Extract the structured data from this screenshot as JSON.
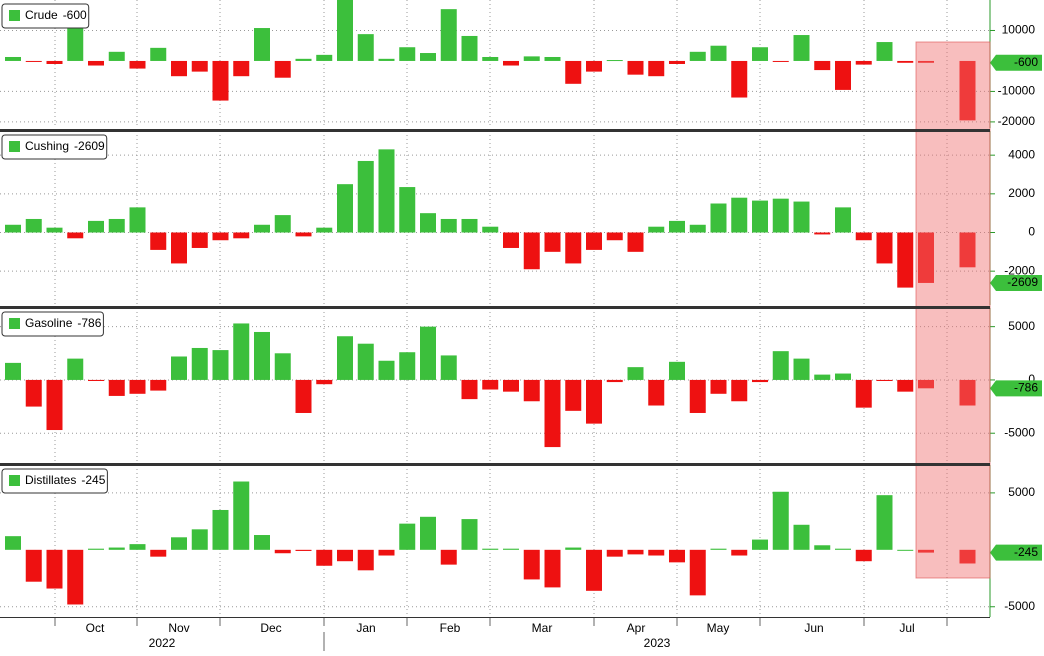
{
  "chart_data": [
    {
      "type": "bar",
      "series": [
        {
          "name": "Crude",
          "values": [
            1300,
            -200,
            -1000,
            10800,
            -1500,
            3000,
            -2500,
            4300,
            -5000,
            -3500,
            -13000,
            -5000,
            10800,
            -5500,
            700,
            2000,
            20000,
            8800,
            700,
            4500,
            2600,
            17000,
            8200,
            1300,
            -1500,
            1500,
            1300,
            -7500,
            -3500,
            300,
            -4500,
            -5000,
            -1000,
            3000,
            5000,
            -12000,
            4500,
            -200,
            8500,
            -3000,
            -9500,
            -1200,
            6200,
            -600,
            -600,
            null,
            -19500
          ]
        }
      ],
      "ylim": [
        -22000,
        20000
      ],
      "yticks": [
        -20000,
        -10000,
        10000
      ],
      "colors": {
        "positive": "#3cbf3c",
        "negative": "#ee1111"
      },
      "grid": true
    },
    {
      "type": "bar",
      "series": [
        {
          "name": "Cushing",
          "values": [
            400,
            700,
            250,
            -300,
            600,
            700,
            1300,
            -900,
            -1600,
            -800,
            -400,
            -300,
            400,
            900,
            -200,
            250,
            2500,
            3700,
            4300,
            2350,
            1000,
            700,
            700,
            300,
            -800,
            -1900,
            -1000,
            -1600,
            -900,
            -400,
            -1000,
            300,
            600,
            400,
            1500,
            1800,
            1650,
            1750,
            1600,
            -100,
            1300,
            -400,
            -1600,
            -2850,
            -2609,
            null,
            -1800
          ]
        }
      ],
      "ylim": [
        -3750,
        5250
      ],
      "yticks": [
        -2000,
        0,
        2000,
        4000
      ],
      "colors": {
        "positive": "#3cbf3c",
        "negative": "#ee1111"
      },
      "grid": true
    },
    {
      "type": "bar",
      "series": [
        {
          "name": "Gasoline",
          "values": [
            1600,
            -2500,
            -4700,
            2000,
            -100,
            -1500,
            -1300,
            -1000,
            2200,
            3000,
            2800,
            5300,
            4500,
            2500,
            -3100,
            -400,
            4100,
            3400,
            1800,
            2600,
            5000,
            2300,
            -1800,
            -900,
            -1100,
            -2000,
            -6300,
            -2900,
            -4100,
            -200,
            1200,
            -2400,
            1700,
            -3100,
            -1300,
            -2000,
            -200,
            2700,
            2000,
            500,
            600,
            -2600,
            -100,
            -1100,
            -786,
            null,
            -2400
          ]
        }
      ],
      "ylim": [
        -7700,
        6750
      ],
      "yticks": [
        -5000,
        0,
        5000
      ],
      "colors": {
        "positive": "#3cbf3c",
        "negative": "#ee1111"
      },
      "grid": true
    },
    {
      "type": "bar",
      "series": [
        {
          "name": "Distillates",
          "values": [
            1200,
            -2800,
            -3400,
            -4800,
            100,
            200,
            500,
            -600,
            1100,
            1800,
            3500,
            6000,
            1300,
            -300,
            -100,
            -1400,
            -1000,
            -1800,
            -500,
            2300,
            2900,
            -1300,
            2700,
            100,
            100,
            -2600,
            -3300,
            200,
            -3600,
            -600,
            -400,
            -500,
            -1100,
            -4000,
            100,
            -500,
            900,
            5100,
            2200,
            400,
            100,
            -1000,
            4800,
            0,
            -245,
            null,
            -1200
          ]
        }
      ],
      "ylim": [
        -5900,
        7450
      ],
      "yticks": [
        -5000,
        5000
      ],
      "colors": {
        "positive": "#3cbf3c",
        "negative": "#ee1111"
      },
      "grid": true
    }
  ],
  "x_axis": {
    "months": [
      "Oct",
      "Nov",
      "Dec",
      "Jan",
      "Feb",
      "Mar",
      "Apr",
      "May",
      "Jun",
      "Jul"
    ],
    "years": [
      "2022",
      "2023"
    ]
  }
}
